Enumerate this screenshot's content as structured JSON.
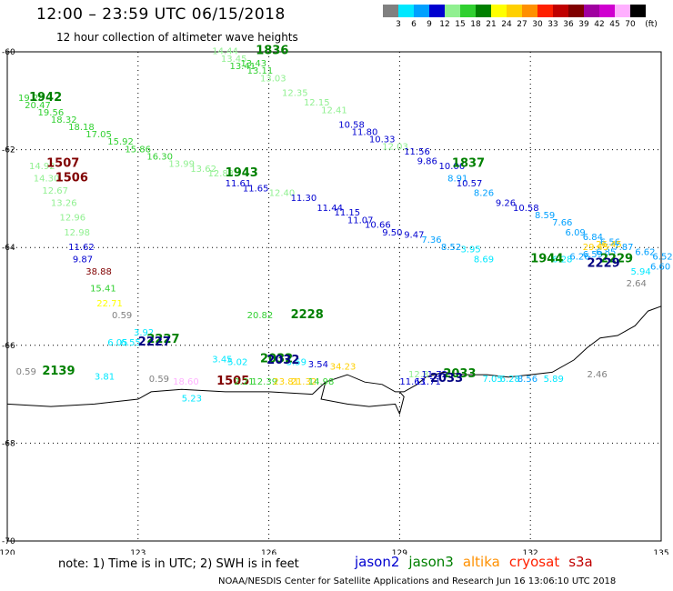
{
  "header": {
    "title": "12:00 – 23:59 UTC 06/15/2018",
    "subtitle": "12 hour collection of altimeter wave heights"
  },
  "color_scale": {
    "labels": [
      "3",
      "6",
      "9",
      "12",
      "15",
      "18",
      "21",
      "24",
      "27",
      "30",
      "33",
      "36",
      "39",
      "42",
      "45",
      "70",
      "(ft)"
    ],
    "colors": [
      "#808080",
      "#00e8ff",
      "#00a0ff",
      "#0000d0",
      "#90f090",
      "#30d030",
      "#008000",
      "#ffff00",
      "#ffd000",
      "#ff9000",
      "#ff2000",
      "#c00000",
      "#800000",
      "#a000a0",
      "#d000d0",
      "#ffb0ff",
      "#000000"
    ]
  },
  "map": {
    "lon_range": [
      120,
      135
    ],
    "lat_range": [
      -70,
      -60
    ],
    "lon_ticks": [
      "120",
      "123",
      "126",
      "129",
      "132",
      "135"
    ],
    "lat_ticks": [
      "-60",
      "-62",
      "-64",
      "-66",
      "-68",
      "-70"
    ],
    "grid": "dotted"
  },
  "tracks": [
    {
      "id": "t1836",
      "times": [
        {
          "lon": 125.7,
          "lat": -60.05,
          "text": "1836",
          "color": "#008000"
        }
      ],
      "values": [
        {
          "lon": 124.7,
          "lat": -60.05,
          "text": "14.44",
          "color": "#90f090"
        },
        {
          "lon": 124.9,
          "lat": -60.2,
          "text": "13.45",
          "color": "#90f090"
        },
        {
          "lon": 125.1,
          "lat": -60.35,
          "text": "13.41",
          "color": "#30d030"
        },
        {
          "lon": 125.35,
          "lat": -60.3,
          "text": "13.43",
          "color": "#30d030"
        },
        {
          "lon": 125.5,
          "lat": -60.45,
          "text": "13.11",
          "color": "#30d030"
        },
        {
          "lon": 125.8,
          "lat": -60.6,
          "text": "13.03",
          "color": "#90f090"
        },
        {
          "lon": 126.3,
          "lat": -60.9,
          "text": "12.35",
          "color": "#90f090"
        },
        {
          "lon": 126.8,
          "lat": -61.1,
          "text": "12.15",
          "color": "#90f090"
        },
        {
          "lon": 127.2,
          "lat": -61.25,
          "text": "12.41",
          "color": "#90f090"
        },
        {
          "lon": 127.6,
          "lat": -61.55,
          "text": "10.58",
          "color": "#0000d0"
        },
        {
          "lon": 127.9,
          "lat": -61.7,
          "text": "11.80",
          "color": "#0000d0"
        },
        {
          "lon": 128.3,
          "lat": -61.85,
          "text": "10.33",
          "color": "#0000d0"
        },
        {
          "lon": 128.6,
          "lat": -62.0,
          "text": "12.03",
          "color": "#90f090"
        },
        {
          "lon": 129.1,
          "lat": -62.1,
          "text": "11.56",
          "color": "#0000d0"
        },
        {
          "lon": 129.4,
          "lat": -62.3,
          "text": "9.86",
          "color": "#0000d0"
        },
        {
          "lon": 129.9,
          "lat": -62.4,
          "text": "10.06",
          "color": "#0000d0"
        },
        {
          "lon": 130.1,
          "lat": -62.65,
          "text": "8.91",
          "color": "#00a0ff"
        },
        {
          "lon": 130.3,
          "lat": -62.75,
          "text": "10.57",
          "color": "#0000d0"
        },
        {
          "lon": 130.7,
          "lat": -62.95,
          "text": "8.26",
          "color": "#00a0ff"
        },
        {
          "lon": 131.2,
          "lat": -63.15,
          "text": "9.26",
          "color": "#0000d0"
        },
        {
          "lon": 131.6,
          "lat": -63.25,
          "text": "10.58",
          "color": "#0000d0"
        },
        {
          "lon": 132.1,
          "lat": -63.4,
          "text": "8.59",
          "color": "#00a0ff"
        },
        {
          "lon": 132.5,
          "lat": -63.55,
          "text": "7.66",
          "color": "#00a0ff"
        },
        {
          "lon": 132.8,
          "lat": -63.75,
          "text": "6.09",
          "color": "#00a0ff"
        },
        {
          "lon": 133.2,
          "lat": -63.85,
          "text": "6.84",
          "color": "#00a0ff"
        },
        {
          "lon": 133.6,
          "lat": -63.95,
          "text": "6.56",
          "color": "#00a0ff"
        },
        {
          "lon": 133.9,
          "lat": -64.05,
          "text": "7.87",
          "color": "#00a0ff"
        },
        {
          "lon": 134.4,
          "lat": -64.15,
          "text": "6.62",
          "color": "#00a0ff"
        },
        {
          "lon": 134.8,
          "lat": -64.25,
          "text": "6.52",
          "color": "#00a0ff"
        },
        {
          "lon": 134.75,
          "lat": -64.45,
          "text": "6.60",
          "color": "#00a0ff"
        },
        {
          "lon": 134.3,
          "lat": -64.55,
          "text": "5.94",
          "color": "#00e8ff"
        }
      ]
    },
    {
      "id": "t1837",
      "times": [
        {
          "lon": 130.2,
          "lat": -62.35,
          "text": "1837",
          "color": "#008000"
        }
      ],
      "values": []
    },
    {
      "id": "t1942",
      "times": [
        {
          "lon": 120.5,
          "lat": -61.0,
          "text": "1942",
          "color": "#008000"
        }
      ],
      "values": [
        {
          "lon": 120.25,
          "lat": -61.0,
          "text": "19.28",
          "color": "#30d030"
        },
        {
          "lon": 120.4,
          "lat": -61.15,
          "text": "20.47",
          "color": "#30d030"
        },
        {
          "lon": 120.7,
          "lat": -61.3,
          "text": "19.56",
          "color": "#30d030"
        },
        {
          "lon": 121.0,
          "lat": -61.45,
          "text": "18.32",
          "color": "#30d030"
        },
        {
          "lon": 121.4,
          "lat": -61.6,
          "text": "18.18",
          "color": "#30d030"
        },
        {
          "lon": 121.8,
          "lat": -61.75,
          "text": "17.05",
          "color": "#30d030"
        },
        {
          "lon": 122.3,
          "lat": -61.9,
          "text": "15.92",
          "color": "#30d030"
        },
        {
          "lon": 122.7,
          "lat": -62.05,
          "text": "15.86",
          "color": "#30d030"
        },
        {
          "lon": 123.2,
          "lat": -62.2,
          "text": "16.30",
          "color": "#30d030"
        },
        {
          "lon": 123.7,
          "lat": -62.35,
          "text": "13.99",
          "color": "#90f090"
        },
        {
          "lon": 124.2,
          "lat": -62.45,
          "text": "13.62",
          "color": "#90f090"
        },
        {
          "lon": 124.6,
          "lat": -62.55,
          "text": "12.83",
          "color": "#90f090"
        },
        {
          "lon": 125.0,
          "lat": -62.75,
          "text": "11.61",
          "color": "#0000d0"
        },
        {
          "lon": 125.4,
          "lat": -62.85,
          "text": "11.65",
          "color": "#0000d0"
        },
        {
          "lon": 126.0,
          "lat": -62.95,
          "text": "12.40",
          "color": "#90f090"
        },
        {
          "lon": 126.5,
          "lat": -63.05,
          "text": "11.30",
          "color": "#0000d0"
        },
        {
          "lon": 127.1,
          "lat": -63.25,
          "text": "11.44",
          "color": "#0000d0"
        },
        {
          "lon": 127.5,
          "lat": -63.35,
          "text": "11.15",
          "color": "#0000d0"
        },
        {
          "lon": 127.8,
          "lat": -63.5,
          "text": "11.07",
          "color": "#0000d0"
        },
        {
          "lon": 128.2,
          "lat": -63.6,
          "text": "10.66",
          "color": "#0000d0"
        },
        {
          "lon": 128.6,
          "lat": -63.75,
          "text": "9.50",
          "color": "#0000d0"
        },
        {
          "lon": 129.1,
          "lat": -63.8,
          "text": "9.47",
          "color": "#0000d0"
        },
        {
          "lon": 129.5,
          "lat": -63.9,
          "text": "7.36",
          "color": "#00a0ff"
        },
        {
          "lon": 129.95,
          "lat": -64.05,
          "text": "8.52",
          "color": "#00a0ff"
        },
        {
          "lon": 130.4,
          "lat": -64.1,
          "text": "3.95",
          "color": "#00e8ff"
        }
      ]
    },
    {
      "id": "t1943",
      "times": [
        {
          "lon": 125.0,
          "lat": -62.55,
          "text": "1943",
          "color": "#008000"
        }
      ],
      "values": []
    },
    {
      "id": "t1944",
      "times": [
        {
          "lon": 132.0,
          "lat": -64.3,
          "text": "1944",
          "color": "#008000"
        }
      ],
      "values": [
        {
          "lon": 130.7,
          "lat": -64.3,
          "text": "8.69",
          "color": "#00e8ff"
        },
        {
          "lon": 132.5,
          "lat": -64.3,
          "text": "6.28",
          "color": "#00e8ff"
        },
        {
          "lon": 132.9,
          "lat": -64.25,
          "text": "6.26",
          "color": "#00a0ff"
        },
        {
          "lon": 133.2,
          "lat": -64.2,
          "text": "6.59",
          "color": "#00a0ff"
        },
        {
          "lon": 133.5,
          "lat": -64.15,
          "text": "6.85",
          "color": "#00a0ff"
        },
        {
          "lon": 133.2,
          "lat": -64.05,
          "text": "29.45",
          "color": "#ffd000"
        },
        {
          "lon": 133.5,
          "lat": -64.0,
          "text": "26.45",
          "color": "#ffd000"
        }
      ]
    },
    {
      "id": "t2229",
      "times": [
        {
          "lon": 133.6,
          "lat": -64.3,
          "text": "2229",
          "color": "#008000"
        },
        {
          "lon": 133.3,
          "lat": -64.4,
          "text": "2229",
          "color": "#000080"
        }
      ],
      "values": [
        {
          "lon": 134.2,
          "lat": -64.8,
          "text": "2.64",
          "color": "#808080"
        }
      ]
    },
    {
      "id": "t1507",
      "times": [
        {
          "lon": 120.9,
          "lat": -62.35,
          "text": "1507",
          "color": "#800000"
        },
        {
          "lon": 121.1,
          "lat": -62.65,
          "text": "1506",
          "color": "#800000"
        }
      ],
      "values": [
        {
          "lon": 120.5,
          "lat": -62.4,
          "text": "14.92",
          "color": "#90f090"
        },
        {
          "lon": 120.6,
          "lat": -62.65,
          "text": "14.30",
          "color": "#90f090"
        },
        {
          "lon": 120.8,
          "lat": -62.9,
          "text": "12.67",
          "color": "#90f090"
        },
        {
          "lon": 121.0,
          "lat": -63.15,
          "text": "13.26",
          "color": "#90f090"
        },
        {
          "lon": 121.2,
          "lat": -63.45,
          "text": "12.96",
          "color": "#90f090"
        },
        {
          "lon": 121.3,
          "lat": -63.75,
          "text": "12.98",
          "color": "#90f090"
        },
        {
          "lon": 121.4,
          "lat": -64.05,
          "text": "11.62",
          "color": "#0000d0"
        },
        {
          "lon": 121.5,
          "lat": -64.3,
          "text": "9.87",
          "color": "#0000d0"
        },
        {
          "lon": 121.8,
          "lat": -64.55,
          "text": "38.88",
          "color": "#800000"
        },
        {
          "lon": 121.9,
          "lat": -64.9,
          "text": "15.41",
          "color": "#30d030"
        },
        {
          "lon": 122.05,
          "lat": -65.2,
          "text": "22.71",
          "color": "#ffff00"
        },
        {
          "lon": 122.4,
          "lat": -65.45,
          "text": "0.59",
          "color": "#808080"
        }
      ]
    },
    {
      "id": "t2227",
      "times": [
        {
          "lon": 123.2,
          "lat": -65.95,
          "text": "2227",
          "color": "#008000"
        },
        {
          "lon": 123.0,
          "lat": -66.0,
          "text": "2227",
          "color": "#000080"
        }
      ],
      "values": [
        {
          "lon": 122.3,
          "lat": -66.0,
          "text": "6.05",
          "color": "#00e8ff"
        },
        {
          "lon": 122.6,
          "lat": -66.0,
          "text": "6.55",
          "color": "#00e8ff"
        },
        {
          "lon": 122.9,
          "lat": -65.8,
          "text": "3.92",
          "color": "#00e8ff"
        }
      ]
    },
    {
      "id": "t2228",
      "times": [
        {
          "lon": 126.5,
          "lat": -65.45,
          "text": "2228",
          "color": "#008000"
        }
      ],
      "values": [
        {
          "lon": 125.5,
          "lat": -65.45,
          "text": "20.82",
          "color": "#30d030"
        }
      ]
    },
    {
      "id": "t2139",
      "times": [
        {
          "lon": 120.8,
          "lat": -66.6,
          "text": "2139",
          "color": "#008000"
        }
      ],
      "values": [
        {
          "lon": 120.2,
          "lat": -66.6,
          "text": "0.59",
          "color": "#808080"
        },
        {
          "lon": 122.0,
          "lat": -66.7,
          "text": "3.81",
          "color": "#00e8ff"
        },
        {
          "lon": 123.25,
          "lat": -66.75,
          "text": "0.59",
          "color": "#808080"
        }
      ]
    },
    {
      "id": "t1505",
      "times": [
        {
          "lon": 124.8,
          "lat": -66.8,
          "text": "1505",
          "color": "#800000"
        }
      ],
      "values": [
        {
          "lon": 123.8,
          "lat": -66.8,
          "text": "18.60",
          "color": "#ffb0ff"
        },
        {
          "lon": 124.0,
          "lat": -67.15,
          "text": "5.23",
          "color": "#00e8ff"
        },
        {
          "lon": 124.7,
          "lat": -66.35,
          "text": "3.45",
          "color": "#00e8ff"
        }
      ]
    },
    {
      "id": "t2032",
      "times": [
        {
          "lon": 125.8,
          "lat": -66.35,
          "text": "2032",
          "color": "#008000"
        },
        {
          "lon": 125.95,
          "lat": -66.38,
          "text": "2032",
          "color": "#000080"
        }
      ],
      "values": [
        {
          "lon": 125.05,
          "lat": -66.4,
          "text": "5.02",
          "color": "#00e8ff"
        },
        {
          "lon": 126.4,
          "lat": -66.4,
          "text": "5.59",
          "color": "#00e8ff"
        },
        {
          "lon": 126.9,
          "lat": -66.45,
          "text": "3.54",
          "color": "#0000d0"
        },
        {
          "lon": 127.4,
          "lat": -66.5,
          "text": "34.23",
          "color": "#ffd000"
        },
        {
          "lon": 125.2,
          "lat": -66.8,
          "text": "2.21",
          "color": "#30d030"
        },
        {
          "lon": 125.6,
          "lat": -66.8,
          "text": "12.39",
          "color": "#30d030"
        },
        {
          "lon": 126.1,
          "lat": -66.8,
          "text": "23.81",
          "color": "#ffd000"
        },
        {
          "lon": 126.5,
          "lat": -66.8,
          "text": "21.32",
          "color": "#ffd000"
        },
        {
          "lon": 126.9,
          "lat": -66.8,
          "text": "14.98",
          "color": "#30d030"
        }
      ]
    },
    {
      "id": "t2033",
      "times": [
        {
          "lon": 130.0,
          "lat": -66.65,
          "text": "2033",
          "color": "#008000"
        },
        {
          "lon": 129.7,
          "lat": -66.75,
          "text": "2033",
          "color": "#000080"
        }
      ],
      "values": [
        {
          "lon": 129.2,
          "lat": -66.65,
          "text": "12.8",
          "color": "#90f090"
        },
        {
          "lon": 129.5,
          "lat": -66.65,
          "text": "11.72",
          "color": "#0000d0"
        },
        {
          "lon": 129.0,
          "lat": -66.8,
          "text": "11.63",
          "color": "#0000d0"
        },
        {
          "lon": 129.35,
          "lat": -66.8,
          "text": "11.71",
          "color": "#0000d0"
        },
        {
          "lon": 130.9,
          "lat": -66.75,
          "text": "7.05",
          "color": "#00e8ff"
        },
        {
          "lon": 131.3,
          "lat": -66.75,
          "text": "6.28",
          "color": "#00e8ff"
        },
        {
          "lon": 131.7,
          "lat": -66.75,
          "text": "8.56",
          "color": "#00a0ff"
        },
        {
          "lon": 132.3,
          "lat": -66.75,
          "text": "5.89",
          "color": "#00e8ff"
        },
        {
          "lon": 133.3,
          "lat": -66.65,
          "text": "2.46",
          "color": "#808080"
        }
      ]
    }
  ],
  "coastline_points": [
    [
      120.0,
      -67.2
    ],
    [
      121.0,
      -67.25
    ],
    [
      122.0,
      -67.2
    ],
    [
      123.0,
      -67.1
    ],
    [
      123.3,
      -66.95
    ],
    [
      124.0,
      -66.9
    ],
    [
      125.0,
      -66.95
    ],
    [
      126.0,
      -66.95
    ],
    [
      127.0,
      -67.0
    ],
    [
      127.3,
      -66.75
    ],
    [
      127.8,
      -66.6
    ],
    [
      128.2,
      -66.75
    ],
    [
      128.6,
      -66.8
    ],
    [
      128.9,
      -66.95
    ],
    [
      129.1,
      -66.95
    ],
    [
      129.4,
      -66.8
    ],
    [
      129.6,
      -66.65
    ],
    [
      130.0,
      -66.55
    ],
    [
      130.5,
      -66.6
    ],
    [
      131.0,
      -66.6
    ],
    [
      131.5,
      -66.65
    ],
    [
      132.0,
      -66.6
    ],
    [
      132.5,
      -66.55
    ],
    [
      133.0,
      -66.3
    ],
    [
      133.3,
      -66.05
    ],
    [
      133.6,
      -65.85
    ],
    [
      134.0,
      -65.8
    ],
    [
      134.4,
      -65.6
    ],
    [
      134.7,
      -65.3
    ],
    [
      135.0,
      -65.2
    ]
  ],
  "bay_points": [
    [
      127.3,
      -66.75
    ],
    [
      127.2,
      -67.1
    ],
    [
      127.8,
      -67.2
    ],
    [
      128.3,
      -67.25
    ],
    [
      128.9,
      -67.2
    ],
    [
      129.0,
      -67.4
    ],
    [
      129.1,
      -67.05
    ],
    [
      129.0,
      -66.95
    ]
  ],
  "footnote": "note: 1) Time is in UTC; 2) SWH is in feet",
  "satellites": [
    {
      "name": "jason2",
      "color": "#0000d0"
    },
    {
      "name": "jason3",
      "color": "#008000"
    },
    {
      "name": "altika",
      "color": "#ff9000"
    },
    {
      "name": "cryosat",
      "color": "#ff2000"
    },
    {
      "name": "s3a",
      "color": "#c00000"
    }
  ],
  "credit": "NOAA/NESDIS Center for Satellite Applications and Research   Jun 16 13:06:10 UTC 2018"
}
